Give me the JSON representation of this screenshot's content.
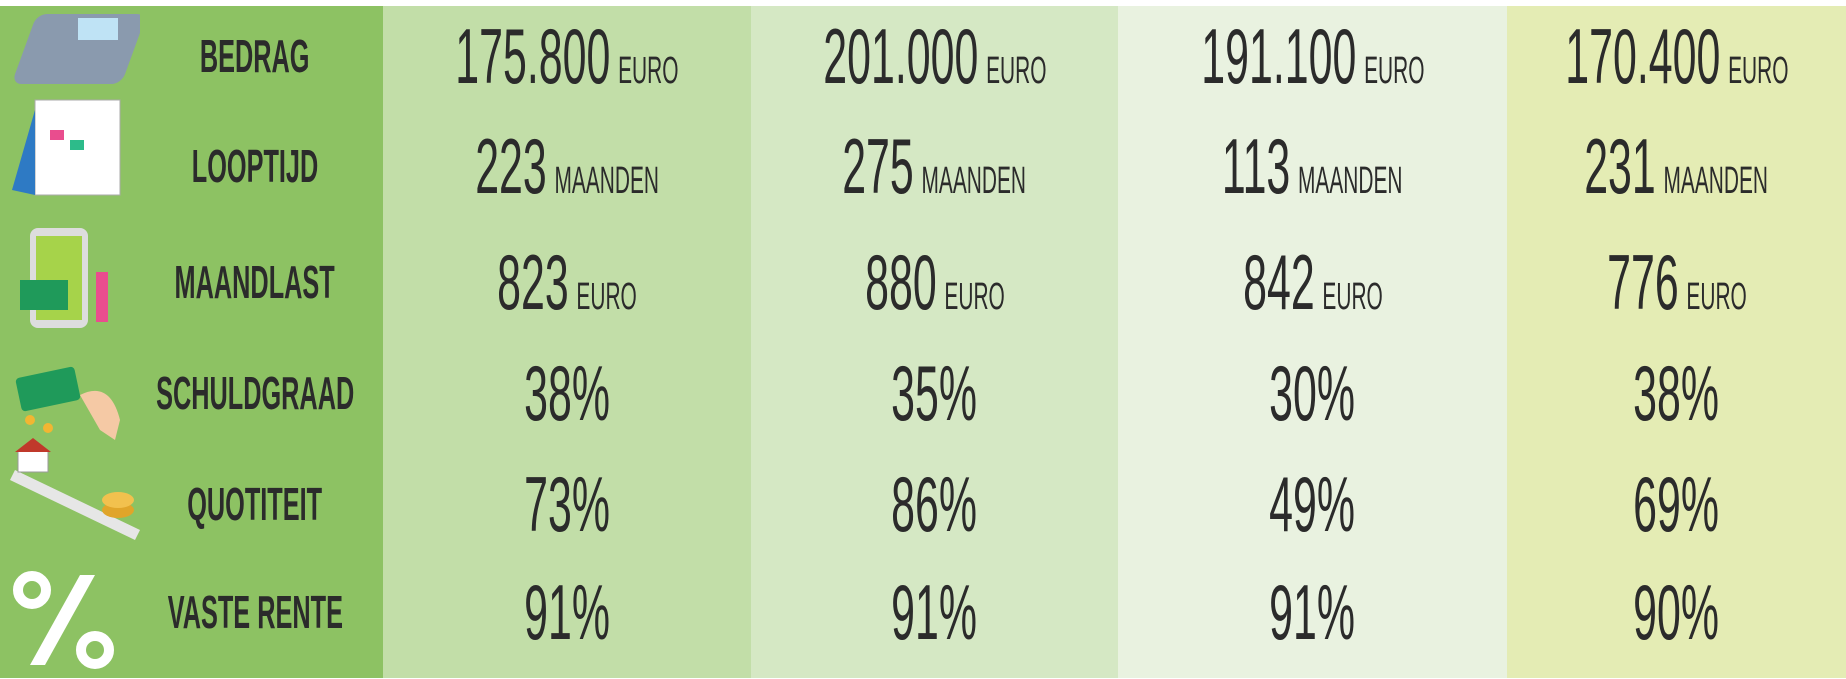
{
  "table": {
    "rows": [
      {
        "label": "BEDRAG",
        "cells": [
          {
            "value": "175.800",
            "unit": "EURO"
          },
          {
            "value": "201.000",
            "unit": "EURO"
          },
          {
            "value": "191.100",
            "unit": "EURO"
          },
          {
            "value": "170.400",
            "unit": "EURO"
          }
        ]
      },
      {
        "label": "LOOPTIJD",
        "cells": [
          {
            "value": "223",
            "unit": "MAANDEN"
          },
          {
            "value": "275",
            "unit": "MAANDEN"
          },
          {
            "value": "113",
            "unit": "MAANDEN"
          },
          {
            "value": "231",
            "unit": "MAANDEN"
          }
        ]
      },
      {
        "label": "MAANDLAST",
        "cells": [
          {
            "value": "823",
            "unit": "EURO"
          },
          {
            "value": "880",
            "unit": "EURO"
          },
          {
            "value": "842",
            "unit": "EURO"
          },
          {
            "value": "776",
            "unit": "EURO"
          }
        ]
      },
      {
        "label": "SCHULDGRAAD",
        "cells": [
          {
            "value": "38%"
          },
          {
            "value": "35%"
          },
          {
            "value": "30%"
          },
          {
            "value": "38%"
          }
        ]
      },
      {
        "label": "QUOTITEIT",
        "cells": [
          {
            "value": "73%"
          },
          {
            "value": "86%"
          },
          {
            "value": "49%"
          },
          {
            "value": "69%"
          }
        ]
      },
      {
        "label": "VASTE RENTE",
        "cells": [
          {
            "value": "91%"
          },
          {
            "value": "91%"
          },
          {
            "value": "91%"
          },
          {
            "value": "90%"
          }
        ]
      }
    ]
  }
}
